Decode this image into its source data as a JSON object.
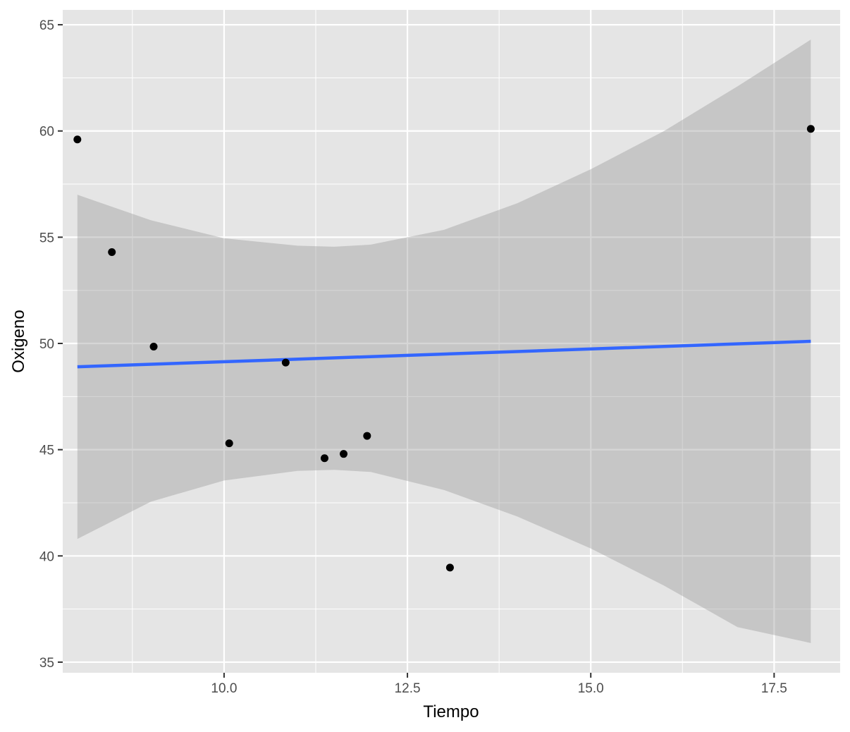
{
  "chart_data": {
    "type": "scatter",
    "title": "",
    "xlabel": "Tiempo",
    "ylabel": "Oxigeno",
    "xlim": [
      7.8,
      18.4
    ],
    "ylim": [
      34.5,
      65.7
    ],
    "x_ticks": [
      10.0,
      12.5,
      15.0,
      17.5
    ],
    "x_tick_labels": [
      "10.0",
      "12.5",
      "15.0",
      "17.5"
    ],
    "y_ticks": [
      35,
      40,
      45,
      50,
      55,
      60,
      65
    ],
    "y_tick_labels": [
      "35",
      "40",
      "45",
      "50",
      "55",
      "60",
      "65"
    ],
    "grid": true,
    "points": [
      {
        "x": 8.0,
        "y": 59.6
      },
      {
        "x": 8.47,
        "y": 54.3
      },
      {
        "x": 9.04,
        "y": 49.85
      },
      {
        "x": 10.07,
        "y": 45.3
      },
      {
        "x": 10.84,
        "y": 49.1
      },
      {
        "x": 11.37,
        "y": 44.6
      },
      {
        "x": 11.63,
        "y": 44.8
      },
      {
        "x": 11.95,
        "y": 45.65
      },
      {
        "x": 13.08,
        "y": 39.45
      },
      {
        "x": 18.0,
        "y": 60.1
      }
    ],
    "trend_line": {
      "method": "lm",
      "x": [
        8.0,
        18.0
      ],
      "y": [
        48.9,
        50.1
      ],
      "color": "#3366ff"
    },
    "confidence_band": {
      "color": "#999999",
      "x": [
        8.0,
        9.0,
        10.0,
        11.0,
        11.5,
        12.0,
        13.0,
        14.0,
        15.0,
        16.0,
        17.0,
        18.0
      ],
      "upper": [
        57.0,
        55.8,
        54.95,
        54.6,
        54.55,
        54.65,
        55.35,
        56.6,
        58.2,
        60.0,
        62.1,
        64.3
      ],
      "lower": [
        40.8,
        42.55,
        43.55,
        44.0,
        44.05,
        43.95,
        43.1,
        41.85,
        40.35,
        38.6,
        36.65,
        35.9
      ]
    },
    "colors": {
      "panel_background": "#e5e5e5",
      "grid_major": "#ffffff",
      "points": "#000000"
    }
  }
}
